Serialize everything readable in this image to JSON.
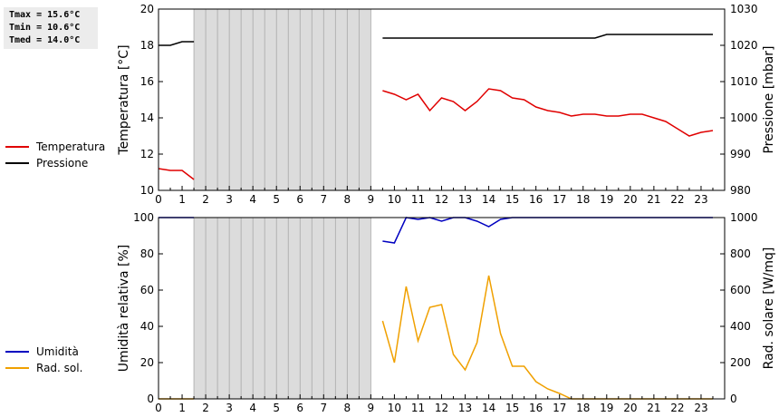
{
  "stats": {
    "tmax": "Tmax = 15.6°C",
    "tmin": "Tmin = 10.6°C",
    "tmed": "Tmed = 14.0°C"
  },
  "legend_top": [
    {
      "label": "Temperatura",
      "color": "#e00000"
    },
    {
      "label": "Pressione",
      "color": "#000000"
    }
  ],
  "legend_bottom": [
    {
      "label": "Umidità",
      "color": "#0000c0"
    },
    {
      "label": "Rad. sol.",
      "color": "#f0a000"
    }
  ],
  "chart_data": [
    {
      "type": "line",
      "xlim": [
        0,
        24
      ],
      "xticks": [
        "0",
        "1",
        "2",
        "3",
        "4",
        "5",
        "6",
        "7",
        "8",
        "9",
        "10",
        "11",
        "12",
        "13",
        "14",
        "15",
        "16",
        "17",
        "18",
        "19",
        "20",
        "21",
        "22",
        "23"
      ],
      "no_data_range": [
        1.5,
        9
      ],
      "ylabel": "Temperatura [°C]",
      "ylim": [
        10,
        20
      ],
      "yticks": [
        "10",
        "12",
        "14",
        "16",
        "18",
        "20"
      ],
      "y2label": "Pressione [mbar]",
      "y2lim": [
        980,
        1030
      ],
      "y2ticks": [
        "980",
        "990",
        "1000",
        "1010",
        "1020",
        "1030"
      ],
      "series": [
        {
          "name": "Temperatura",
          "color": "#e00000",
          "axis": "left",
          "segments": [
            [
              [
                0,
                11.2
              ],
              [
                0.5,
                11.1
              ],
              [
                1,
                11.1
              ],
              [
                1.5,
                10.6
              ]
            ],
            [
              [
                9.5,
                15.5
              ],
              [
                10,
                15.3
              ],
              [
                10.5,
                15.0
              ],
              [
                11,
                15.3
              ],
              [
                11.5,
                14.4
              ],
              [
                12,
                15.1
              ],
              [
                12.5,
                14.9
              ],
              [
                13,
                14.4
              ],
              [
                13.5,
                14.9
              ],
              [
                14,
                15.6
              ],
              [
                14.5,
                15.5
              ],
              [
                15,
                15.1
              ],
              [
                15.5,
                15.0
              ],
              [
                16,
                14.6
              ],
              [
                16.5,
                14.4
              ],
              [
                17,
                14.3
              ],
              [
                17.5,
                14.1
              ],
              [
                18,
                14.2
              ],
              [
                18.5,
                14.2
              ],
              [
                19,
                14.1
              ],
              [
                19.5,
                14.1
              ],
              [
                20,
                14.2
              ],
              [
                20.5,
                14.2
              ],
              [
                21,
                14.0
              ],
              [
                21.5,
                13.8
              ],
              [
                22,
                13.4
              ],
              [
                22.5,
                13.0
              ],
              [
                23,
                13.2
              ],
              [
                23.5,
                13.3
              ]
            ]
          ]
        },
        {
          "name": "Pressione",
          "color": "#000000",
          "axis": "right",
          "segments": [
            [
              [
                0,
                1020
              ],
              [
                0.5,
                1020
              ],
              [
                1,
                1021
              ],
              [
                1.5,
                1021
              ]
            ],
            [
              [
                9.5,
                1022
              ],
              [
                18.5,
                1022
              ],
              [
                19,
                1023
              ],
              [
                23.5,
                1023
              ]
            ]
          ]
        }
      ]
    },
    {
      "type": "line",
      "xlim": [
        0,
        24
      ],
      "xticks": [
        "0",
        "1",
        "2",
        "3",
        "4",
        "5",
        "6",
        "7",
        "8",
        "9",
        "10",
        "11",
        "12",
        "13",
        "14",
        "15",
        "16",
        "17",
        "18",
        "19",
        "20",
        "21",
        "22",
        "23"
      ],
      "no_data_range": [
        1.5,
        9
      ],
      "ylabel": "Umidità relativa [%]",
      "ylim": [
        0,
        100
      ],
      "yticks": [
        "0",
        "20",
        "40",
        "60",
        "80",
        "100"
      ],
      "y2label": "Rad. solare [W/mq]",
      "y2lim": [
        0,
        1000
      ],
      "y2ticks": [
        "0",
        "200",
        "400",
        "600",
        "800",
        "1000"
      ],
      "series": [
        {
          "name": "Umidità",
          "color": "#0000c0",
          "axis": "left",
          "segments": [
            [
              [
                0,
                100
              ],
              [
                1.5,
                100
              ]
            ],
            [
              [
                9.5,
                87
              ],
              [
                10,
                86
              ],
              [
                10.5,
                100
              ],
              [
                11,
                99
              ],
              [
                11.5,
                100
              ],
              [
                12,
                98
              ],
              [
                12.5,
                100
              ],
              [
                13,
                100
              ],
              [
                13.5,
                98
              ],
              [
                14,
                95
              ],
              [
                14.5,
                99
              ],
              [
                15,
                100
              ],
              [
                23.5,
                100
              ]
            ]
          ]
        },
        {
          "name": "Rad. sol.",
          "color": "#f0a000",
          "axis": "right",
          "segments": [
            [
              [
                0,
                0
              ],
              [
                1.5,
                0
              ]
            ],
            [
              [
                9.5,
                430
              ],
              [
                10,
                200
              ],
              [
                10.5,
                620
              ],
              [
                11,
                320
              ],
              [
                11.5,
                505
              ],
              [
                12,
                520
              ],
              [
                12.5,
                245
              ],
              [
                13,
                160
              ],
              [
                13.5,
                310
              ],
              [
                14,
                680
              ],
              [
                14.5,
                360
              ],
              [
                15,
                180
              ],
              [
                15.5,
                180
              ],
              [
                16,
                95
              ],
              [
                16.5,
                55
              ],
              [
                17,
                30
              ],
              [
                17.5,
                0
              ],
              [
                18,
                0
              ],
              [
                23.5,
                0
              ]
            ]
          ]
        }
      ]
    }
  ]
}
